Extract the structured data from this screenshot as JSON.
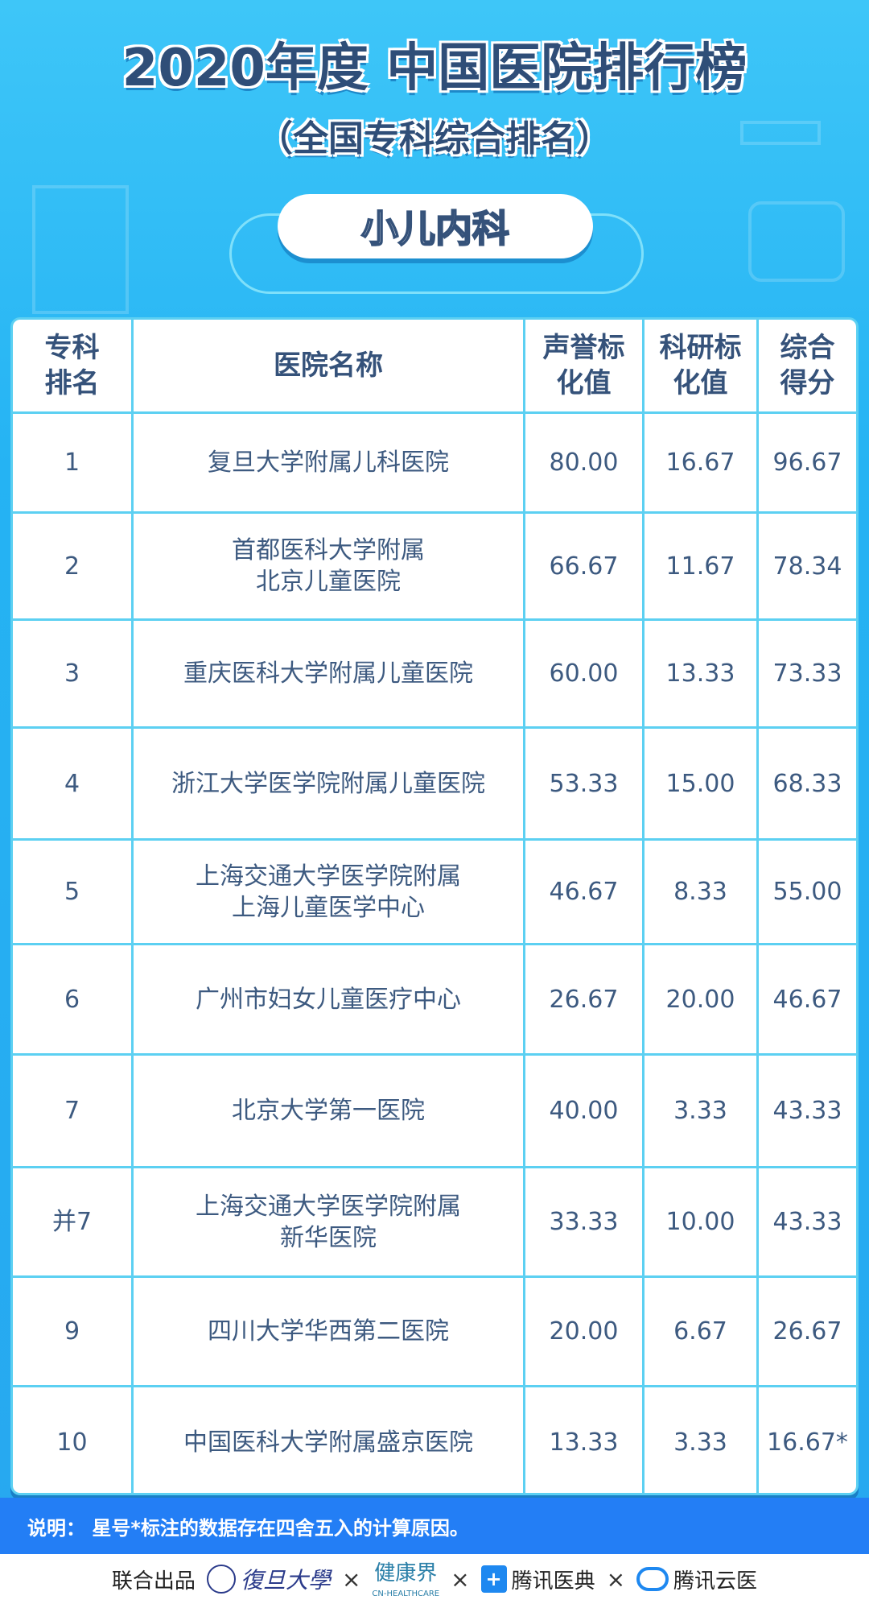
{
  "header": {
    "title": "2020年度 中国医院排行榜",
    "subtitle": "（全国专科综合排名）",
    "specialty": "小儿内科"
  },
  "table": {
    "columns": [
      "专科\n排名",
      "医院名称",
      "声誉标\n化值",
      "科研标\n化值",
      "综合\n得分"
    ],
    "rows": [
      [
        "1",
        "复旦大学附属儿科医院",
        "80.00",
        "16.67",
        "96.67"
      ],
      [
        "2",
        "首都医科大学附属\n北京儿童医院",
        "66.67",
        "11.67",
        "78.34"
      ],
      [
        "3",
        "重庆医科大学附属儿童医院",
        "60.00",
        "13.33",
        "73.33"
      ],
      [
        "4",
        "浙江大学医学院附属儿童医院",
        "53.33",
        "15.00",
        "68.33"
      ],
      [
        "5",
        "上海交通大学医学院附属\n上海儿童医学中心",
        "46.67",
        "8.33",
        "55.00"
      ],
      [
        "6",
        "广州市妇女儿童医疗中心",
        "26.67",
        "20.00",
        "46.67"
      ],
      [
        "7",
        "北京大学第一医院",
        "40.00",
        "3.33",
        "43.33"
      ],
      [
        "并7",
        "上海交通大学医学院附属\n新华医院",
        "33.33",
        "10.00",
        "43.33"
      ],
      [
        "9",
        "四川大学华西第二医院",
        "20.00",
        "6.67",
        "26.67"
      ],
      [
        "10",
        "中国医科大学附属盛京医院",
        "13.33",
        "3.33",
        "16.67*"
      ]
    ]
  },
  "note": "说明：  星号*标注的数据存在四舍五入的计算原因。",
  "footer": {
    "label": "联合出品",
    "sep": "×",
    "fudan": "復旦大學",
    "jkj": "健康界",
    "jkj_en": "CN-HEALTHCARE",
    "txyd": "腾讯医典",
    "txyy": "腾讯云医"
  },
  "colors": {
    "background": "#27b0f2",
    "title": "#2f4e78",
    "border": "#5cd0f2",
    "note_bar": "#237ef5"
  }
}
